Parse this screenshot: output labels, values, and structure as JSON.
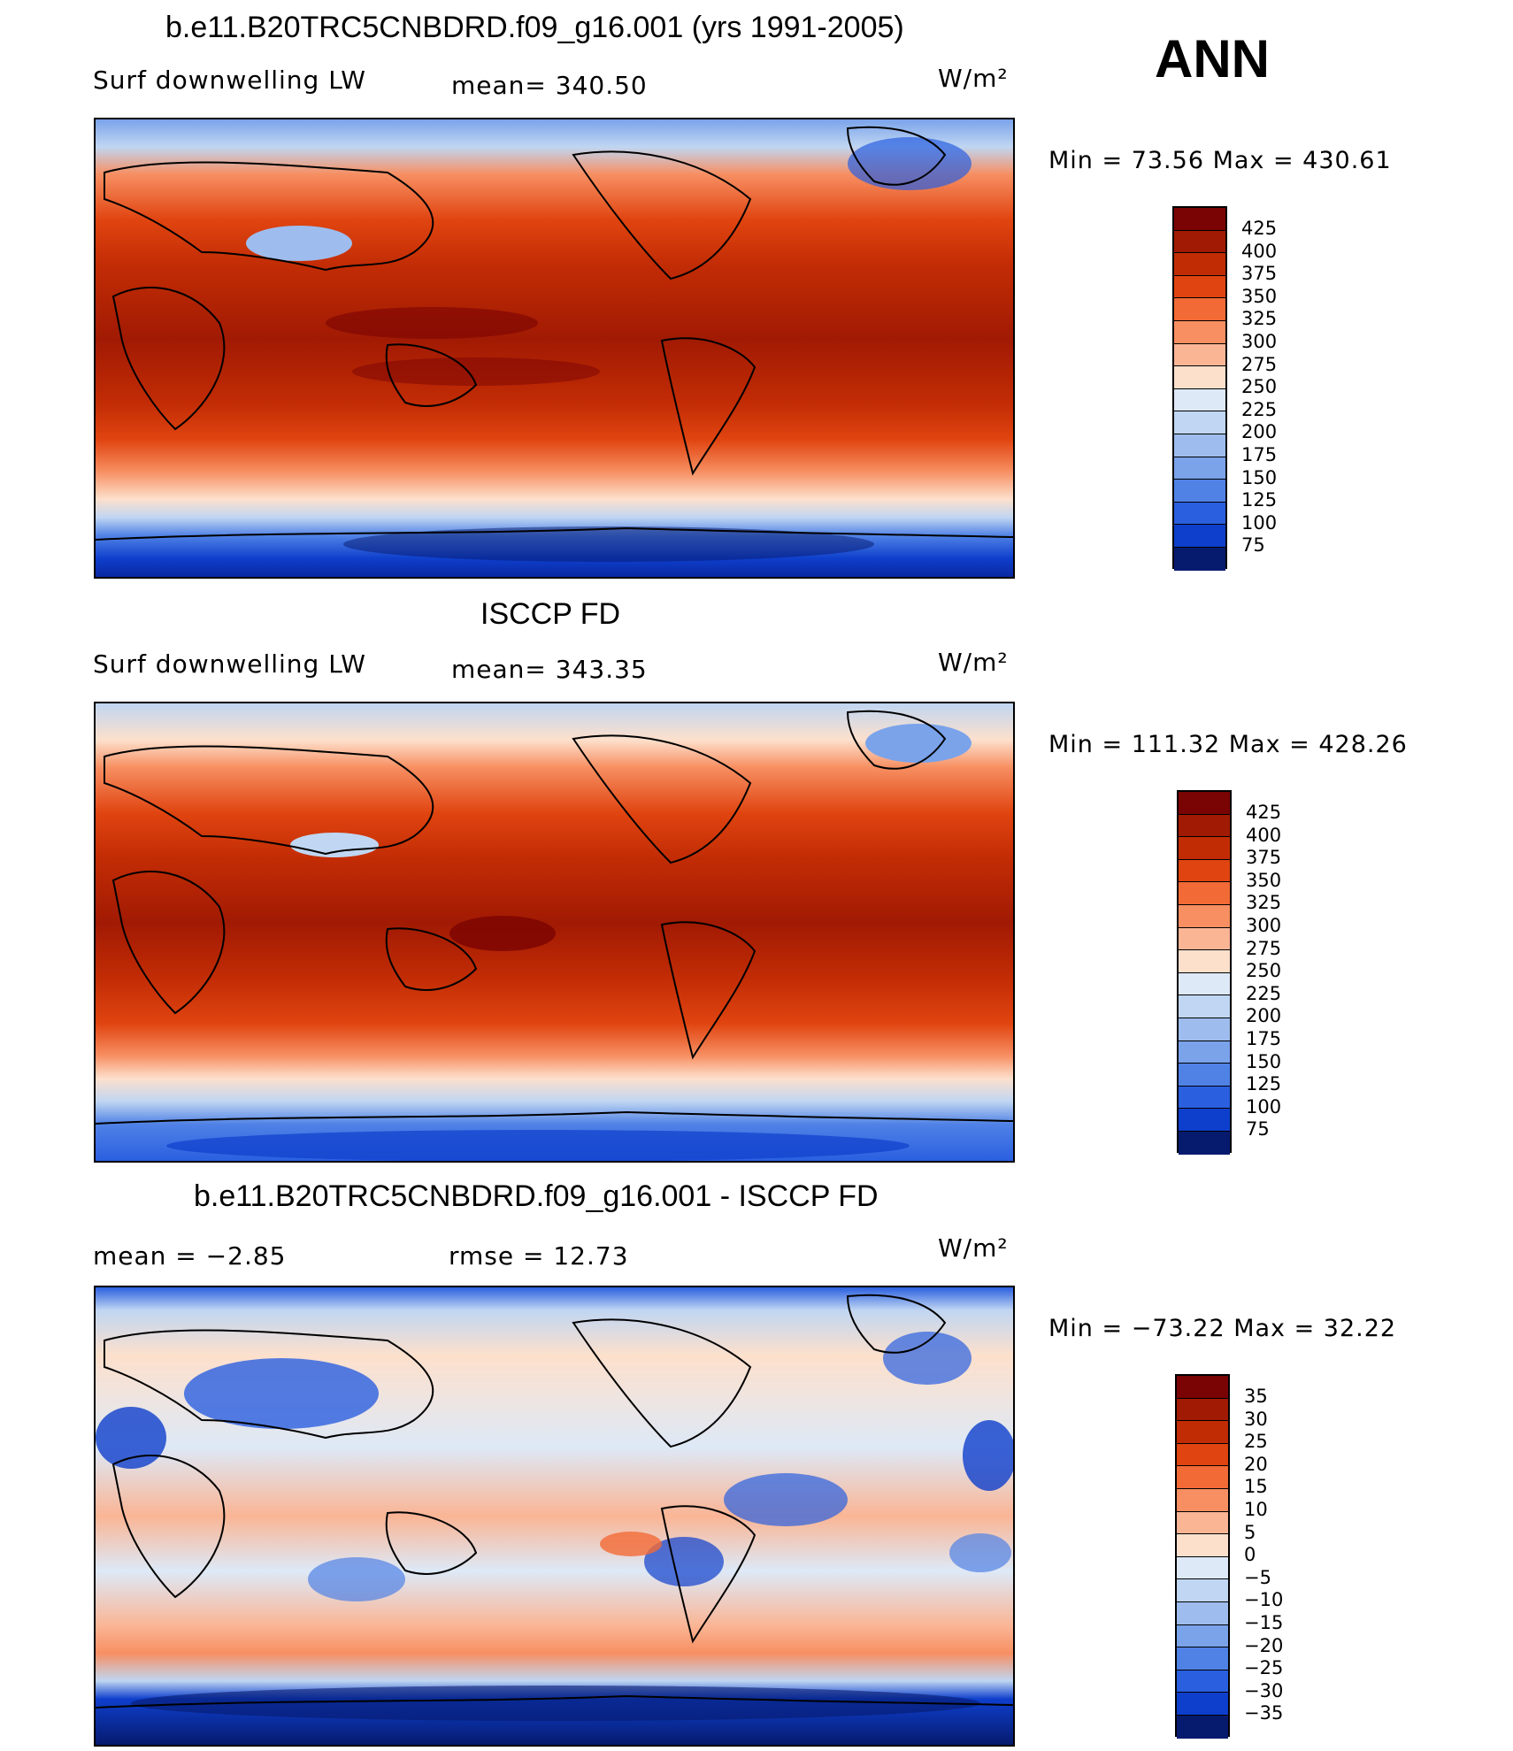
{
  "header": {
    "season": "ANN",
    "units": "W/m²"
  },
  "panels": [
    {
      "title": "b.e11.B20TRC5CNBDRD.f09_g16.001 (yrs 1991-2005)",
      "left_label": "Surf downwelling LW",
      "mid_label": "mean= 340.50",
      "units": "W/m²",
      "minmax": "Min =  73.56 Max = 430.61",
      "colorbar_labels": [
        "425",
        "400",
        "375",
        "350",
        "325",
        "300",
        "275",
        "250",
        "225",
        "200",
        "175",
        "150",
        "125",
        "100",
        "75"
      ]
    },
    {
      "title": "ISCCP FD",
      "left_label": "Surf downwelling LW",
      "mid_label": "mean= 343.35",
      "units": "W/m²",
      "minmax": "Min = 111.32 Max = 428.26",
      "colorbar_labels": [
        "425",
        "400",
        "375",
        "350",
        "325",
        "300",
        "275",
        "250",
        "225",
        "200",
        "175",
        "150",
        "125",
        "100",
        "75"
      ]
    },
    {
      "title": "b.e11.B20TRC5CNBDRD.f09_g16.001 - ISCCP FD",
      "left_label": "mean =   −2.85",
      "mid_label": "rmse =   12.73",
      "units": "W/m²",
      "minmax": "Min = −73.22 Max =   32.22",
      "colorbar_labels": [
        "35",
        "30",
        "25",
        "20",
        "15",
        "10",
        "5",
        "0",
        "−5",
        "−10",
        "−15",
        "−20",
        "−25",
        "−30",
        "−35"
      ]
    }
  ],
  "colors": {
    "palette": [
      "#7a0403",
      "#a11a03",
      "#c22c05",
      "#e04410",
      "#f26a36",
      "#f78f62",
      "#fab595",
      "#fde0cc",
      "#dde9f7",
      "#c0d6f2",
      "#9ebdee",
      "#7aa3ea",
      "#5082e6",
      "#2a5fe0",
      "#0e3fcc",
      "#0a28a0",
      "#061a6e"
    ]
  }
}
